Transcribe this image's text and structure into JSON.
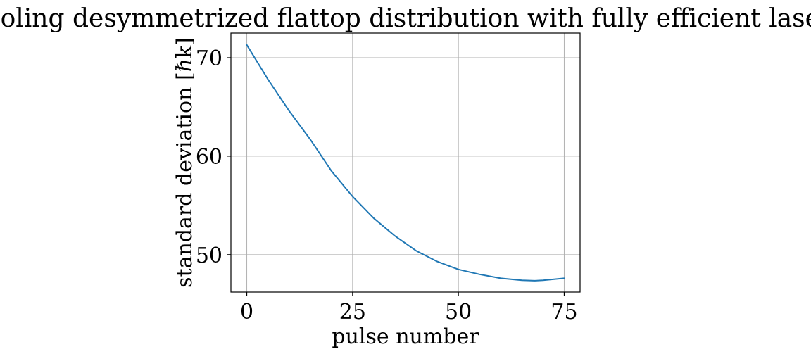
{
  "chart_data": {
    "type": "line",
    "title": "Cooling desymmetrized flattop distribution with fully efficient lasers",
    "xlabel": "pulse number",
    "ylabel": "standard deviation [ℏk]",
    "xlim": [
      -3.75,
      78.75
    ],
    "ylim": [
      46.2,
      72.5
    ],
    "xticks": [
      0,
      25,
      50,
      75
    ],
    "yticks": [
      50,
      60,
      70
    ],
    "xtick_labels": [
      "0",
      "25",
      "50",
      "75"
    ],
    "ytick_labels": [
      "50",
      "60",
      "70"
    ],
    "grid": true,
    "line_color": "#1f77b4",
    "series": [
      {
        "x": [
          0,
          5,
          10,
          15,
          20,
          25,
          30,
          35,
          40,
          45,
          50,
          55,
          60,
          65,
          68,
          70,
          75
        ],
        "y": [
          71.3,
          67.8,
          64.6,
          61.7,
          58.5,
          55.9,
          53.7,
          51.9,
          50.4,
          49.3,
          48.5,
          48.0,
          47.6,
          47.4,
          47.35,
          47.4,
          47.6
        ]
      }
    ]
  }
}
